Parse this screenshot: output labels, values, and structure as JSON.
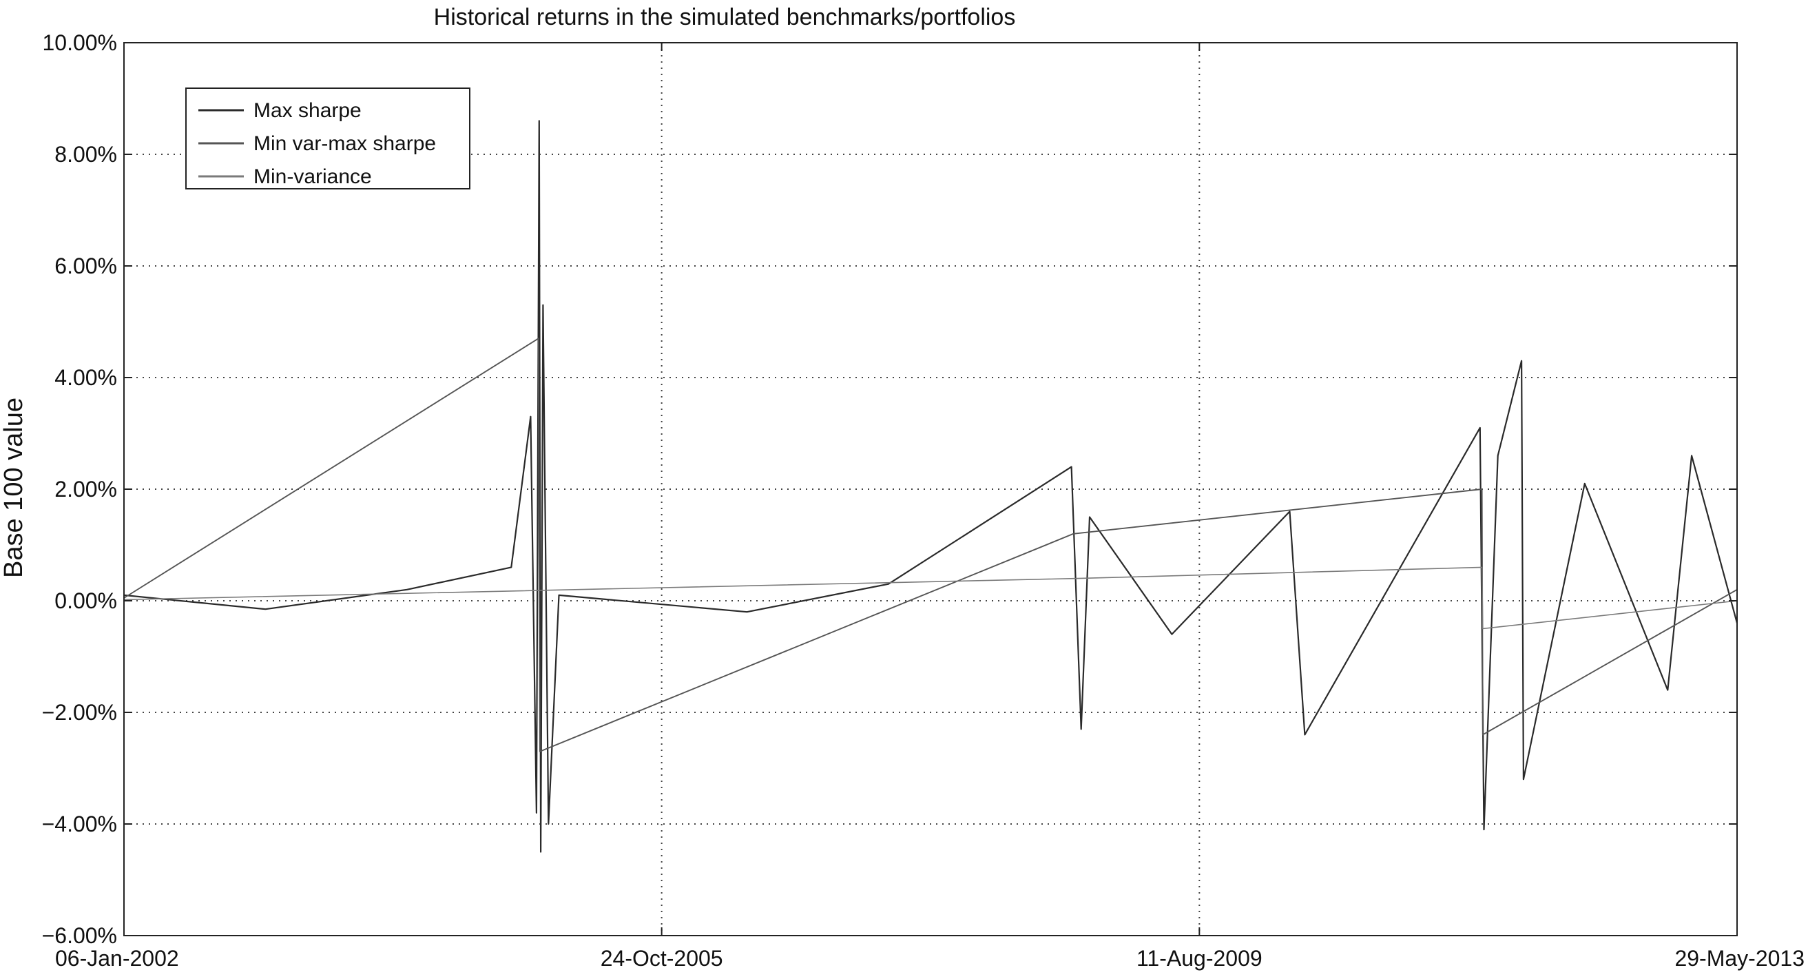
{
  "chart_data": {
    "type": "line",
    "title": "Historical returns in the simulated benchmarks/portfolios",
    "xlabel": "",
    "ylabel": "Base 100 value",
    "x_start": "06-Jan-2002",
    "x_end": "29-May-2013",
    "xlim": [
      "2002-01-06",
      "2013-05-29"
    ],
    "ylim": [
      -0.06,
      0.1
    ],
    "x_ticks": [
      {
        "date": "2002-01-06",
        "label": "06-Jan-2002"
      },
      {
        "date": "2005-10-24",
        "label": "24-Oct-2005"
      },
      {
        "date": "2009-08-11",
        "label": "11-Aug-2009"
      },
      {
        "date": "2013-05-29",
        "label": "29-May-2013"
      }
    ],
    "y_ticks": [
      {
        "value": 0.1,
        "label": "10.00%"
      },
      {
        "value": 0.08,
        "label": "8.00%"
      },
      {
        "value": 0.06,
        "label": "6.00%"
      },
      {
        "value": 0.04,
        "label": "4.00%"
      },
      {
        "value": 0.02,
        "label": "2.00%"
      },
      {
        "value": 0.0,
        "label": "0.00%"
      },
      {
        "value": -0.02,
        "label": "−2.00%"
      },
      {
        "value": -0.04,
        "label": "−4.00%"
      },
      {
        "value": -0.06,
        "label": "−6.00%"
      }
    ],
    "grid": true,
    "legend_position": "top-left",
    "series": [
      {
        "name": "Max sharpe",
        "color": "#2a2a2a",
        "points": [
          [
            "2002-01-06",
            0.001
          ],
          [
            "2003-01-06",
            -0.0015
          ],
          [
            "2004-01-06",
            0.002
          ],
          [
            "2004-10-01",
            0.006
          ],
          [
            "2004-11-20",
            0.033
          ],
          [
            "2004-12-05",
            -0.038
          ],
          [
            "2004-12-12",
            0.086
          ],
          [
            "2004-12-16",
            -0.045
          ],
          [
            "2004-12-22",
            0.053
          ],
          [
            "2005-01-05",
            -0.04
          ],
          [
            "2005-02-01",
            0.001
          ],
          [
            "2006-06-01",
            -0.002
          ],
          [
            "2007-06-01",
            0.003
          ],
          [
            "2008-09-15",
            0.024
          ],
          [
            "2008-10-10",
            -0.023
          ],
          [
            "2008-11-01",
            0.015
          ],
          [
            "2009-06-01",
            -0.006
          ],
          [
            "2010-04-01",
            0.016
          ],
          [
            "2010-05-10",
            -0.024
          ],
          [
            "2011-08-05",
            0.031
          ],
          [
            "2011-08-15",
            -0.041
          ],
          [
            "2011-09-20",
            0.026
          ],
          [
            "2011-11-20",
            0.043
          ],
          [
            "2011-11-25",
            -0.032
          ],
          [
            "2012-05-01",
            0.021
          ],
          [
            "2012-12-01",
            -0.016
          ],
          [
            "2013-02-01",
            0.026
          ],
          [
            "2013-05-29",
            -0.004
          ]
        ]
      },
      {
        "name": "Min var-max sharpe",
        "color": "#555555",
        "points": [
          [
            "2002-01-06",
            0.0005
          ],
          [
            "2004-12-10",
            0.047
          ],
          [
            "2004-12-14",
            -0.027
          ],
          [
            "2008-09-20",
            0.012
          ],
          [
            "2011-08-10",
            0.02
          ],
          [
            "2011-08-12",
            -0.024
          ],
          [
            "2013-05-29",
            0.002
          ]
        ]
      },
      {
        "name": "Min-variance",
        "color": "#7a7a7a",
        "points": [
          [
            "2002-01-06",
            0.0002
          ],
          [
            "2008-10-01",
            0.004
          ],
          [
            "2011-08-10",
            0.006
          ],
          [
            "2011-08-12",
            -0.005
          ],
          [
            "2013-05-29",
            0.0
          ]
        ]
      }
    ]
  }
}
